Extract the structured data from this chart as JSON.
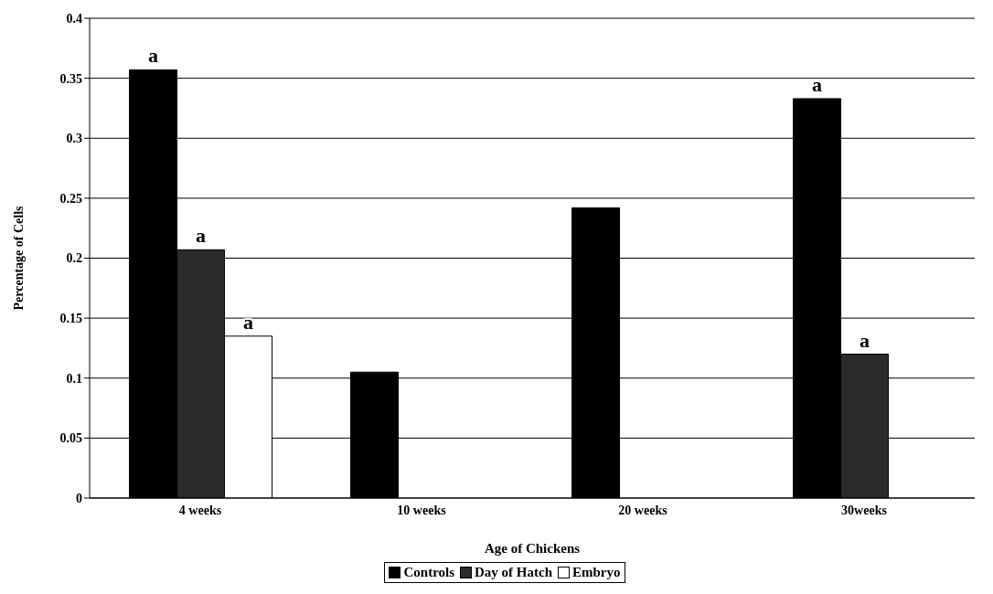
{
  "chart_data": {
    "type": "bar",
    "xlabel": "Age of Chickens",
    "ylabel": "Percentage of Cells",
    "categories": [
      "4 weeks",
      "10 weeks",
      "20 weeks",
      "30weeks"
    ],
    "series": [
      {
        "name": "Controls",
        "color": "#000000",
        "values": [
          0.357,
          0.105,
          0.242,
          0.333
        ]
      },
      {
        "name": "Day of Hatch",
        "color": "#2b2b2b",
        "values": [
          0.207,
          null,
          null,
          0.12
        ]
      },
      {
        "name": "Embryo",
        "color": "#ffffff",
        "values": [
          0.135,
          null,
          null,
          null
        ]
      }
    ],
    "ylim": [
      0,
      0.4
    ],
    "yticks": [
      0,
      0.05,
      0.1,
      0.15,
      0.2,
      0.25,
      0.3,
      0.35,
      0.4
    ],
    "grid": "y",
    "legend": "bottom",
    "annotations": [
      "a",
      "a",
      "a",
      "a",
      "a"
    ]
  }
}
